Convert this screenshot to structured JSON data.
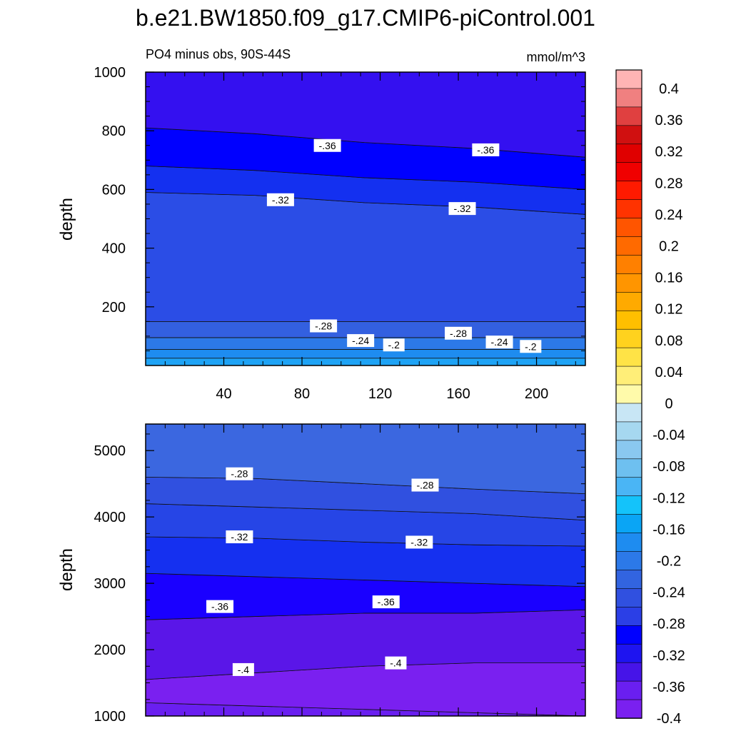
{
  "chart_data": [
    {
      "type": "contour",
      "panel": "top",
      "title": "b.e21.BW1850.f09_g17.CMIP6-piControl.001",
      "subtitle_left": "PO4 minus obs, 90S-44S",
      "subtitle_right": "mmol/m^3",
      "xlabel": "",
      "ylabel": "depth",
      "xlim": [
        0,
        225
      ],
      "ylim": [
        1000,
        0
      ],
      "x_ticks": [
        "40",
        "80",
        "120",
        "160",
        "200"
      ],
      "x_tick_values": [
        40,
        80,
        120,
        160,
        200
      ],
      "y_ticks": [
        "200",
        "400",
        "600",
        "800",
        "1000"
      ],
      "y_tick_values": [
        200,
        400,
        600,
        800,
        1000
      ],
      "contour_labels": [
        {
          "text": "-.24",
          "x": 110,
          "y": 85
        },
        {
          "text": "-.2",
          "x": 127,
          "y": 70
        },
        {
          "text": "-.24",
          "x": 181,
          "y": 80
        },
        {
          "text": "-.2",
          "x": 197,
          "y": 65
        },
        {
          "text": "-.28",
          "x": 91,
          "y": 135
        },
        {
          "text": "-.28",
          "x": 160,
          "y": 110
        },
        {
          "text": "-.32",
          "x": 69,
          "y": 565
        },
        {
          "text": "-.32",
          "x": 162,
          "y": 535
        },
        {
          "text": "-.36",
          "x": 93,
          "y": 750
        },
        {
          "text": "-.36",
          "x": 174,
          "y": 735
        }
      ],
      "bands": [
        {
          "level_color": "#1ea3f5",
          "top": [
            0,
            0,
            0,
            0,
            0
          ],
          "bottom": [
            25,
            25,
            25,
            25,
            25
          ]
        },
        {
          "level_color": "#1e8cf0",
          "top": [
            25,
            25,
            25,
            25,
            25
          ],
          "bottom": [
            55,
            55,
            55,
            55,
            55
          ]
        },
        {
          "level_color": "#2c79e8",
          "top": [
            55,
            55,
            55,
            55,
            55
          ],
          "bottom": [
            95,
            95,
            95,
            95,
            95
          ]
        },
        {
          "level_color": "#3360e0",
          "top": [
            95,
            95,
            95,
            95,
            95
          ],
          "bottom": [
            150,
            150,
            150,
            150,
            150
          ]
        },
        {
          "level_color": "#2b4de6",
          "top": [
            150,
            150,
            150,
            150,
            150
          ],
          "bottom": [
            590,
            580,
            555,
            540,
            515
          ]
        },
        {
          "level_color": "#1430f0",
          "top": [
            590,
            580,
            555,
            540,
            515
          ],
          "bottom": [
            680,
            665,
            640,
            625,
            600
          ]
        },
        {
          "level_color": "#0000ff",
          "top": [
            680,
            665,
            640,
            625,
            600
          ],
          "bottom": [
            810,
            790,
            760,
            740,
            710
          ]
        },
        {
          "level_color": "#3410f0",
          "top": [
            810,
            790,
            760,
            740,
            710
          ],
          "bottom": [
            1000,
            1000,
            1000,
            1000,
            1000
          ]
        }
      ],
      "band_x": [
        0,
        56,
        112,
        168,
        225
      ]
    },
    {
      "type": "contour",
      "panel": "bottom",
      "xlabel": "",
      "ylabel": "depth",
      "xlim": [
        0,
        225
      ],
      "ylim": [
        5400,
        1000
      ],
      "y_ticks": [
        "1000",
        "2000",
        "3000",
        "4000",
        "5000"
      ],
      "y_tick_values": [
        1000,
        2000,
        3000,
        4000,
        5000
      ],
      "contour_labels": [
        {
          "text": "-.4",
          "x": 50,
          "y": 1700
        },
        {
          "text": "-.4",
          "x": 128,
          "y": 1800
        },
        {
          "text": "-.36",
          "x": 38,
          "y": 2650
        },
        {
          "text": "-.36",
          "x": 123,
          "y": 2720
        },
        {
          "text": "-.32",
          "x": 48,
          "y": 3700
        },
        {
          "text": "-.32",
          "x": 140,
          "y": 3620
        },
        {
          "text": "-.28",
          "x": 48,
          "y": 4650
        },
        {
          "text": "-.28",
          "x": 143,
          "y": 4480
        }
      ],
      "bands": [
        {
          "level_color": "#6a1ff0",
          "top": [
            1000,
            1000,
            1000,
            1000,
            1000
          ],
          "bottom": [
            1200,
            1150,
            1100,
            1050,
            1000
          ]
        },
        {
          "level_color": "#7a20f0",
          "top": [
            1200,
            1150,
            1100,
            1050,
            1000
          ],
          "bottom": [
            1550,
            1650,
            1750,
            1800,
            1800
          ]
        },
        {
          "level_color": "#5a16e8",
          "top": [
            1550,
            1650,
            1750,
            1800,
            1800
          ],
          "bottom": [
            2450,
            2500,
            2550,
            2550,
            2600
          ]
        },
        {
          "level_color": "#1a00ff",
          "top": [
            2450,
            2500,
            2550,
            2550,
            2600
          ],
          "bottom": [
            3150,
            3100,
            3050,
            3000,
            2950
          ]
        },
        {
          "level_color": "#1530f0",
          "top": [
            3150,
            3100,
            3050,
            3000,
            2950
          ],
          "bottom": [
            3700,
            3680,
            3620,
            3580,
            3560
          ]
        },
        {
          "level_color": "#2645e6",
          "top": [
            3700,
            3680,
            3620,
            3580,
            3560
          ],
          "bottom": [
            4200,
            4150,
            4100,
            4050,
            3950
          ]
        },
        {
          "level_color": "#3050e0",
          "top": [
            4200,
            4150,
            4100,
            4050,
            3950
          ],
          "bottom": [
            4600,
            4580,
            4500,
            4420,
            4350
          ]
        },
        {
          "level_color": "#3b67e0",
          "top": [
            4600,
            4580,
            4500,
            4420,
            4350
          ],
          "bottom": [
            5400,
            5400,
            5400,
            5400,
            5400
          ]
        }
      ],
      "band_x": [
        0,
        56,
        112,
        168,
        225
      ]
    }
  ],
  "colorbar": {
    "colors": [
      "#ffb4b4",
      "#f08080",
      "#e04040",
      "#d01010",
      "#e00000",
      "#f00000",
      "#ff1a00",
      "#ff3300",
      "#ff5500",
      "#ff6a00",
      "#ff8000",
      "#ff9500",
      "#ffaa00",
      "#ffbf00",
      "#ffd21e",
      "#ffe346",
      "#ffee78",
      "#fffaaa",
      "#c8e6f5",
      "#a6d8f0",
      "#8ac8f0",
      "#6ec0f0",
      "#4ab5f5",
      "#14c3fa",
      "#0aa5f5",
      "#1e8cf0",
      "#2c79e8",
      "#3264e0",
      "#3050e0",
      "#2b3fe6",
      "#0000ff",
      "#1e14f0",
      "#4614e8",
      "#6a1ff0",
      "#7a20f0"
    ],
    "labels": [
      "0.4",
      "0.36",
      "0.32",
      "0.28",
      "0.24",
      "0.2",
      "0.16",
      "0.12",
      "0.08",
      "0.04",
      "0",
      "-0.04",
      "-0.08",
      "-0.12",
      "-0.16",
      "-0.2",
      "-0.24",
      "-0.28",
      "-0.32",
      "-0.36",
      "-0.4"
    ]
  }
}
